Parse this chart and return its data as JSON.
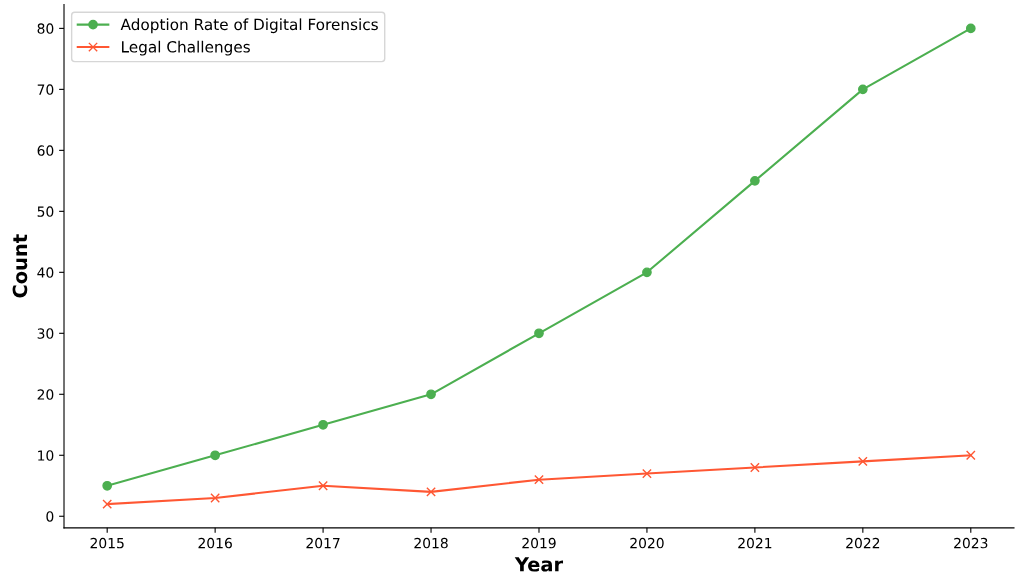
{
  "chart_data": {
    "type": "line",
    "xlabel": "Year",
    "ylabel": "Count",
    "x": [
      2015,
      2016,
      2017,
      2018,
      2019,
      2020,
      2021,
      2022,
      2023
    ],
    "series": [
      {
        "name": "Adoption Rate of Digital Forensics",
        "color": "#4caf50",
        "marker": "circle",
        "values": [
          5,
          10,
          15,
          20,
          30,
          40,
          55,
          70,
          80
        ]
      },
      {
        "name": "Legal Challenges",
        "color": "#ff5733",
        "marker": "cross",
        "values": [
          2,
          3,
          5,
          4,
          6,
          7,
          8,
          9,
          10
        ]
      }
    ],
    "xlim": [
      2014.6,
      2023.4
    ],
    "xticks": [
      2015,
      2016,
      2017,
      2018,
      2019,
      2020,
      2021,
      2022,
      2023
    ],
    "ylim": [
      -1.9,
      83.9
    ],
    "yticks": [
      0,
      10,
      20,
      30,
      40,
      50,
      60,
      70,
      80
    ],
    "grid": false,
    "legend": "top left",
    "line_style": "solid"
  }
}
